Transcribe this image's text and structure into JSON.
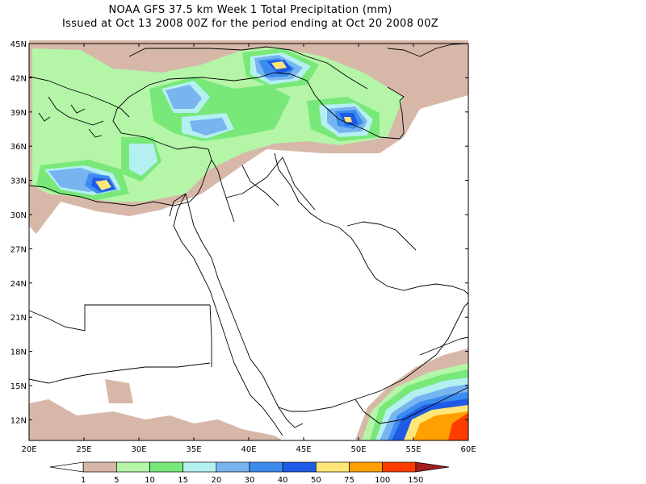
{
  "header": {
    "title_line1": "NOAA GFS 37.5 km Week 1 Total Precipitation (mm)",
    "title_line2": "Issued at Oct 13 2008 00Z for the period ending at Oct 20 2008 00Z"
  },
  "axes": {
    "lat_labels": [
      "45N",
      "42N",
      "39N",
      "36N",
      "33N",
      "30N",
      "27N",
      "24N",
      "21N",
      "18N",
      "15N",
      "12N"
    ],
    "lon_labels": [
      "20E",
      "25E",
      "30E",
      "35E",
      "40E",
      "45E",
      "50E",
      "55E",
      "60E"
    ]
  },
  "legend": {
    "colors": [
      "#ffffff",
      "#d7b8a8",
      "#b4f5a8",
      "#78e878",
      "#b4f0f0",
      "#78b4f0",
      "#3c8cf0",
      "#1e5ae6",
      "#ffe678",
      "#ffa000",
      "#ff3c00",
      "#a01e1e"
    ],
    "values": [
      "1",
      "5",
      "10",
      "15",
      "20",
      "30",
      "40",
      "50",
      "75",
      "100",
      "150"
    ]
  },
  "colors": {
    "frame": "#000000",
    "background": "#ffffff"
  }
}
